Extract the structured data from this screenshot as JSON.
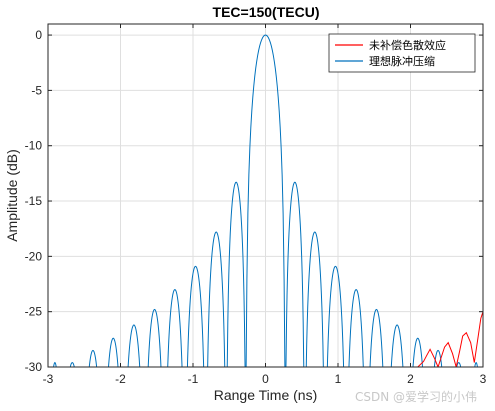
{
  "chart_data": {
    "type": "line",
    "title": "TEC=150(TECU)",
    "xlabel": "Range Time (ns)",
    "ylabel": "Amplitude (dB)",
    "xlim": [
      -3,
      3
    ],
    "ylim": [
      -30,
      1
    ],
    "xticks": [
      -3,
      -2,
      -1,
      0,
      1,
      2,
      3
    ],
    "yticks": [
      0,
      -5,
      -10,
      -15,
      -20,
      -25,
      -30
    ],
    "xtick_labels": [
      "-3",
      "-2",
      "-1",
      "0",
      "1",
      "2",
      "3"
    ],
    "ytick_labels": [
      "0",
      "-5",
      "-10",
      "-15",
      "-20",
      "-25",
      "-30"
    ],
    "grid": true,
    "legend_position": "top-right",
    "series": [
      {
        "name": "未补偿色散效应",
        "color": "#ff0000",
        "x": [
          2.0,
          2.1,
          2.18,
          2.22,
          2.27,
          2.33,
          2.38,
          2.42,
          2.47,
          2.52,
          2.58,
          2.63,
          2.68,
          2.72,
          2.77,
          2.83,
          2.88,
          2.93,
          2.97,
          3.0
        ],
        "y": [
          -30.0,
          -30.0,
          -29.5,
          -29.0,
          -28.4,
          -29.2,
          -30.0,
          -29.2,
          -28.2,
          -27.8,
          -28.8,
          -30.0,
          -28.5,
          -27.2,
          -26.9,
          -27.8,
          -29.6,
          -27.4,
          -25.6,
          -25.0
        ]
      },
      {
        "name": "理想脉冲压缩",
        "color": "#0072bd",
        "peaks": [
          {
            "x": -2.67,
            "db": -29.6
          },
          {
            "x": -2.38,
            "db": -28.5
          },
          {
            "x": -2.1,
            "db": -27.4
          },
          {
            "x": -1.82,
            "db": -26.2
          },
          {
            "x": -1.53,
            "db": -24.8
          },
          {
            "x": -1.25,
            "db": -23.0
          },
          {
            "x": -0.97,
            "db": -20.9
          },
          {
            "x": -0.68,
            "db": -17.8
          },
          {
            "x": -0.38,
            "db": -13.3
          },
          {
            "x": 0.0,
            "db": 0.0
          },
          {
            "x": 0.38,
            "db": -13.3
          },
          {
            "x": 0.68,
            "db": -17.8
          },
          {
            "x": 0.97,
            "db": -20.9
          },
          {
            "x": 1.25,
            "db": -23.0
          },
          {
            "x": 1.53,
            "db": -24.8
          },
          {
            "x": 1.82,
            "db": -26.2
          },
          {
            "x": 2.1,
            "db": -27.4
          },
          {
            "x": 2.38,
            "db": -28.5
          },
          {
            "x": 2.67,
            "db": -29.6
          }
        ],
        "nulls_x": [
          -2.81,
          -2.52,
          -2.24,
          -1.96,
          -1.67,
          -1.39,
          -1.11,
          -0.82,
          -0.54,
          -0.27,
          0.27,
          0.54,
          0.82,
          1.11,
          1.39,
          1.67,
          1.96,
          2.24,
          2.52,
          2.81
        ]
      }
    ]
  },
  "watermark": "CSDN @爱学习的小伟"
}
